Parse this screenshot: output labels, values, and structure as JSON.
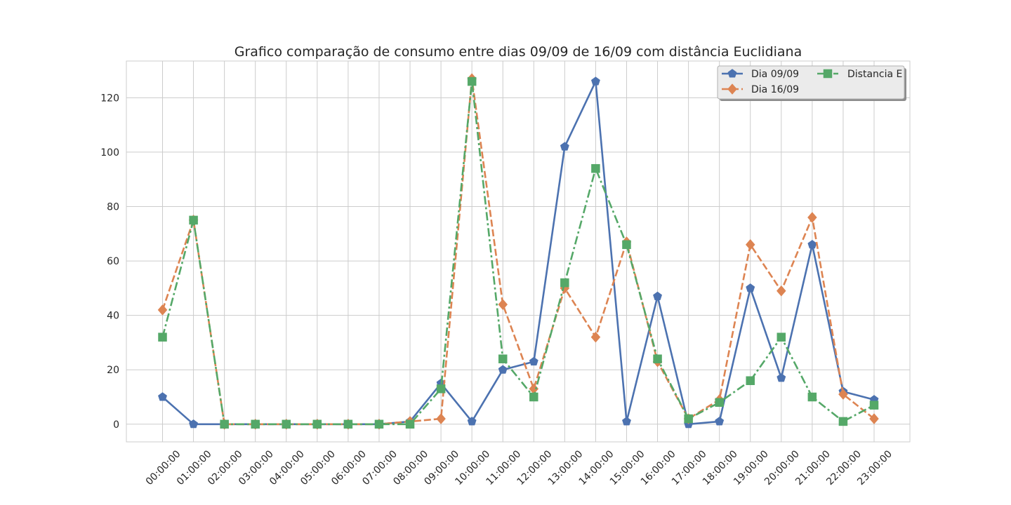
{
  "chart_data": {
    "type": "line",
    "title": "Grafico comparação de consumo entre dias 09/09 de 16/09 com distância Euclidiana",
    "xlabel": "",
    "ylabel": "",
    "categories": [
      "00:00:00",
      "01:00:00",
      "02:00:00",
      "03:00:00",
      "04:00:00",
      "05:00:00",
      "06:00:00",
      "07:00:00",
      "08:00:00",
      "09:00:00",
      "10:00:00",
      "11:00:00",
      "12:00:00",
      "13:00:00",
      "14:00:00",
      "15:00:00",
      "16:00:00",
      "17:00:00",
      "18:00:00",
      "19:00:00",
      "20:00:00",
      "21:00:00",
      "22:00:00",
      "23:00:00"
    ],
    "yticks": [
      0,
      20,
      40,
      60,
      80,
      100,
      120
    ],
    "ylim": [
      -6.5,
      133.5
    ],
    "grid": true,
    "legend_position": "top-right",
    "series": [
      {
        "name": "Dia 09/09",
        "color": "#4c72b0",
        "marker": "pentagon",
        "linestyle": "solid",
        "values": [
          10,
          0,
          0,
          0,
          0,
          0,
          0,
          0,
          1,
          15,
          1,
          20,
          23,
          102,
          126,
          1,
          47,
          0,
          1,
          50,
          17,
          66,
          12,
          9
        ]
      },
      {
        "name": "Dia 16/09",
        "color": "#dd8452",
        "marker": "diamond",
        "linestyle": "dashed",
        "values": [
          42,
          75,
          0,
          0,
          0,
          0,
          0,
          0,
          1,
          2,
          127,
          44,
          13,
          50,
          32,
          67,
          23,
          2,
          9,
          66,
          49,
          76,
          11,
          2
        ]
      },
      {
        "name": "Distancia E",
        "color": "#55a868",
        "marker": "square",
        "linestyle": "dashdot",
        "values": [
          32,
          75,
          0,
          0,
          0,
          0,
          0,
          0,
          0,
          13,
          126,
          24,
          10,
          52,
          94,
          66,
          24,
          2,
          8,
          16,
          32,
          10,
          1,
          7
        ]
      }
    ]
  }
}
